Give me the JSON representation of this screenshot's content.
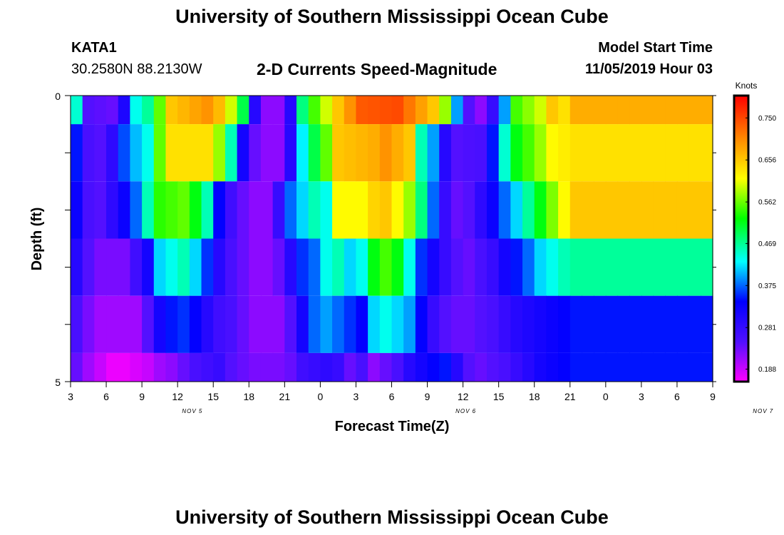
{
  "page": {
    "title_top": "University of Southern Mississippi Ocean Cube",
    "title_bottom": "University of Southern Mississippi Ocean Cube",
    "station_id": "KATA1",
    "coordinates": "30.2580N 88.2130W",
    "model_start_label": "Model Start Time",
    "model_start_value": "11/05/2019 Hour 03"
  },
  "chart_data": {
    "type": "heatmap",
    "title": "2-D Currents Speed-Magnitude",
    "xlabel": "Forecast Time(Z)",
    "ylabel": "Depth (ft)",
    "ylim": [
      0,
      5
    ],
    "y_tick_labels": [
      "0",
      "5"
    ],
    "x_tick_labels": [
      "3",
      "6",
      "9",
      "12",
      "15",
      "18",
      "21",
      "0",
      "3",
      "6",
      "9",
      "12",
      "15",
      "18",
      "21",
      "0",
      "3",
      "6",
      "9"
    ],
    "date_labels": [
      {
        "label": "NOV 5",
        "hour": 13
      },
      {
        "label": "NOV 6",
        "hour": 36
      },
      {
        "label": "NOV 7",
        "hour": 61
      }
    ],
    "x_range_hours": [
      3,
      57
    ],
    "colorbar": {
      "title": "Knots",
      "tick_labels": [
        "0.750",
        "0.656",
        "0.562",
        "0.469",
        "0.375",
        "0.281",
        "0.188"
      ],
      "tick_values": [
        0.75,
        0.656,
        0.562,
        0.469,
        0.375,
        0.281,
        0.188
      ],
      "range": [
        0.16,
        0.8
      ]
    },
    "layers": [
      {
        "depth_top": 0.0,
        "depth_bottom": 0.5,
        "keyframes": [
          [
            3,
            0.45
          ],
          [
            4,
            0.25
          ],
          [
            6,
            0.24
          ],
          [
            7,
            0.31
          ],
          [
            8,
            0.44
          ],
          [
            9,
            0.47
          ],
          [
            10,
            0.56
          ],
          [
            11,
            0.66
          ],
          [
            14,
            0.7
          ],
          [
            15,
            0.67
          ],
          [
            16,
            0.6
          ],
          [
            17,
            0.5
          ],
          [
            18,
            0.3
          ],
          [
            19,
            0.22
          ],
          [
            20,
            0.22
          ],
          [
            21,
            0.3
          ],
          [
            22,
            0.48
          ],
          [
            23,
            0.55
          ],
          [
            24,
            0.6
          ],
          [
            25,
            0.66
          ],
          [
            27,
            0.74
          ],
          [
            30,
            0.75
          ],
          [
            31,
            0.72
          ],
          [
            33,
            0.66
          ],
          [
            34,
            0.58
          ],
          [
            35,
            0.4
          ],
          [
            36,
            0.25
          ],
          [
            37,
            0.22
          ],
          [
            38,
            0.28
          ],
          [
            39,
            0.4
          ],
          [
            40,
            0.55
          ],
          [
            42,
            0.6
          ],
          [
            43,
            0.66
          ],
          [
            44,
            0.64
          ],
          [
            45,
            0.68
          ]
        ]
      },
      {
        "depth_top": 0.5,
        "depth_bottom": 1.5,
        "keyframes": [
          [
            3,
            0.35
          ],
          [
            4,
            0.26
          ],
          [
            5,
            0.25
          ],
          [
            6,
            0.29
          ],
          [
            7,
            0.37
          ],
          [
            8,
            0.41
          ],
          [
            9,
            0.44
          ],
          [
            10,
            0.56
          ],
          [
            11,
            0.64
          ],
          [
            14,
            0.64
          ],
          [
            15,
            0.58
          ],
          [
            16,
            0.46
          ],
          [
            17,
            0.32
          ],
          [
            18,
            0.24
          ],
          [
            19,
            0.22
          ],
          [
            20,
            0.22
          ],
          [
            21,
            0.3
          ],
          [
            22,
            0.43
          ],
          [
            23,
            0.5
          ],
          [
            24,
            0.56
          ],
          [
            25,
            0.66
          ],
          [
            28,
            0.68
          ],
          [
            29,
            0.7
          ],
          [
            31,
            0.66
          ],
          [
            32,
            0.46
          ],
          [
            33,
            0.4
          ],
          [
            34,
            0.3
          ],
          [
            35,
            0.25
          ],
          [
            37,
            0.26
          ],
          [
            38,
            0.35
          ],
          [
            39,
            0.45
          ],
          [
            40,
            0.52
          ],
          [
            42,
            0.58
          ],
          [
            43,
            0.62
          ],
          [
            45,
            0.64
          ]
        ]
      },
      {
        "depth_top": 1.5,
        "depth_bottom": 2.5,
        "keyframes": [
          [
            3,
            0.33
          ],
          [
            4,
            0.26
          ],
          [
            5,
            0.25
          ],
          [
            7,
            0.33
          ],
          [
            8,
            0.38
          ],
          [
            9,
            0.46
          ],
          [
            10,
            0.54
          ],
          [
            12,
            0.56
          ],
          [
            13,
            0.52
          ],
          [
            14,
            0.46
          ],
          [
            15,
            0.34
          ],
          [
            16,
            0.27
          ],
          [
            17,
            0.24
          ],
          [
            18,
            0.22
          ],
          [
            19,
            0.22
          ],
          [
            20,
            0.28
          ],
          [
            21,
            0.38
          ],
          [
            22,
            0.42
          ],
          [
            23,
            0.46
          ],
          [
            24,
            0.44
          ],
          [
            25,
            0.62
          ],
          [
            27,
            0.62
          ],
          [
            28,
            0.65
          ],
          [
            29,
            0.66
          ],
          [
            30,
            0.62
          ],
          [
            31,
            0.58
          ],
          [
            32,
            0.48
          ],
          [
            33,
            0.38
          ],
          [
            34,
            0.28
          ],
          [
            35,
            0.24
          ],
          [
            36,
            0.25
          ],
          [
            37,
            0.29
          ],
          [
            38,
            0.33
          ],
          [
            39,
            0.38
          ],
          [
            40,
            0.42
          ],
          [
            41,
            0.47
          ],
          [
            42,
            0.52
          ],
          [
            43,
            0.57
          ],
          [
            44,
            0.62
          ],
          [
            45,
            0.66
          ]
        ]
      },
      {
        "depth_top": 2.5,
        "depth_bottom": 3.5,
        "keyframes": [
          [
            3,
            0.3
          ],
          [
            4,
            0.25
          ],
          [
            5,
            0.23
          ],
          [
            7,
            0.23
          ],
          [
            8,
            0.27
          ],
          [
            9,
            0.32
          ],
          [
            10,
            0.42
          ],
          [
            11,
            0.44
          ],
          [
            12,
            0.46
          ],
          [
            13,
            0.42
          ],
          [
            14,
            0.36
          ],
          [
            15,
            0.3
          ],
          [
            16,
            0.26
          ],
          [
            17,
            0.24
          ],
          [
            18,
            0.22
          ],
          [
            19,
            0.22
          ],
          [
            20,
            0.24
          ],
          [
            21,
            0.3
          ],
          [
            22,
            0.36
          ],
          [
            23,
            0.38
          ],
          [
            24,
            0.44
          ],
          [
            25,
            0.46
          ],
          [
            26,
            0.42
          ],
          [
            27,
            0.44
          ],
          [
            28,
            0.52
          ],
          [
            29,
            0.55
          ],
          [
            30,
            0.52
          ],
          [
            31,
            0.44
          ],
          [
            32,
            0.36
          ],
          [
            33,
            0.32
          ],
          [
            34,
            0.28
          ],
          [
            35,
            0.25
          ],
          [
            36,
            0.24
          ],
          [
            37,
            0.26
          ],
          [
            38,
            0.28
          ],
          [
            39,
            0.32
          ],
          [
            40,
            0.35
          ],
          [
            41,
            0.38
          ],
          [
            42,
            0.42
          ],
          [
            43,
            0.44
          ],
          [
            44,
            0.46
          ],
          [
            45,
            0.47
          ]
        ]
      },
      {
        "depth_top": 3.5,
        "depth_bottom": 4.5,
        "keyframes": [
          [
            3,
            0.26
          ],
          [
            4,
            0.23
          ],
          [
            5,
            0.21
          ],
          [
            8,
            0.21
          ],
          [
            9,
            0.25
          ],
          [
            10,
            0.32
          ],
          [
            11,
            0.35
          ],
          [
            12,
            0.36
          ],
          [
            13,
            0.34
          ],
          [
            14,
            0.3
          ],
          [
            15,
            0.27
          ],
          [
            16,
            0.26
          ],
          [
            17,
            0.24
          ],
          [
            18,
            0.22
          ],
          [
            20,
            0.22
          ],
          [
            21,
            0.25
          ],
          [
            22,
            0.32
          ],
          [
            23,
            0.38
          ],
          [
            24,
            0.4
          ],
          [
            25,
            0.38
          ],
          [
            26,
            0.36
          ],
          [
            27,
            0.34
          ],
          [
            28,
            0.42
          ],
          [
            29,
            0.44
          ],
          [
            30,
            0.42
          ],
          [
            31,
            0.4
          ],
          [
            32,
            0.34
          ],
          [
            33,
            0.28
          ],
          [
            34,
            0.25
          ],
          [
            35,
            0.24
          ],
          [
            36,
            0.24
          ],
          [
            37,
            0.25
          ],
          [
            38,
            0.26
          ],
          [
            39,
            0.28
          ],
          [
            40,
            0.3
          ],
          [
            41,
            0.31
          ],
          [
            42,
            0.32
          ],
          [
            43,
            0.33
          ],
          [
            44,
            0.34
          ],
          [
            45,
            0.35
          ]
        ]
      },
      {
        "depth_top": 4.5,
        "depth_bottom": 5.0,
        "keyframes": [
          [
            3,
            0.24
          ],
          [
            4,
            0.21
          ],
          [
            5,
            0.19
          ],
          [
            6,
            0.17
          ],
          [
            7,
            0.17
          ],
          [
            8,
            0.18
          ],
          [
            9,
            0.19
          ],
          [
            10,
            0.21
          ],
          [
            11,
            0.22
          ],
          [
            12,
            0.24
          ],
          [
            13,
            0.26
          ],
          [
            14,
            0.27
          ],
          [
            15,
            0.28
          ],
          [
            16,
            0.25
          ],
          [
            17,
            0.24
          ],
          [
            18,
            0.23
          ],
          [
            20,
            0.23
          ],
          [
            21,
            0.24
          ],
          [
            22,
            0.27
          ],
          [
            23,
            0.28
          ],
          [
            24,
            0.29
          ],
          [
            25,
            0.28
          ],
          [
            26,
            0.24
          ],
          [
            27,
            0.26
          ],
          [
            28,
            0.22
          ],
          [
            29,
            0.24
          ],
          [
            30,
            0.26
          ],
          [
            31,
            0.3
          ],
          [
            32,
            0.32
          ],
          [
            33,
            0.34
          ],
          [
            34,
            0.35
          ],
          [
            35,
            0.3
          ],
          [
            36,
            0.25
          ],
          [
            37,
            0.24
          ],
          [
            39,
            0.26
          ],
          [
            40,
            0.28
          ],
          [
            41,
            0.3
          ],
          [
            42,
            0.32
          ],
          [
            43,
            0.33
          ],
          [
            44,
            0.34
          ],
          [
            45,
            0.35
          ]
        ]
      }
    ]
  }
}
